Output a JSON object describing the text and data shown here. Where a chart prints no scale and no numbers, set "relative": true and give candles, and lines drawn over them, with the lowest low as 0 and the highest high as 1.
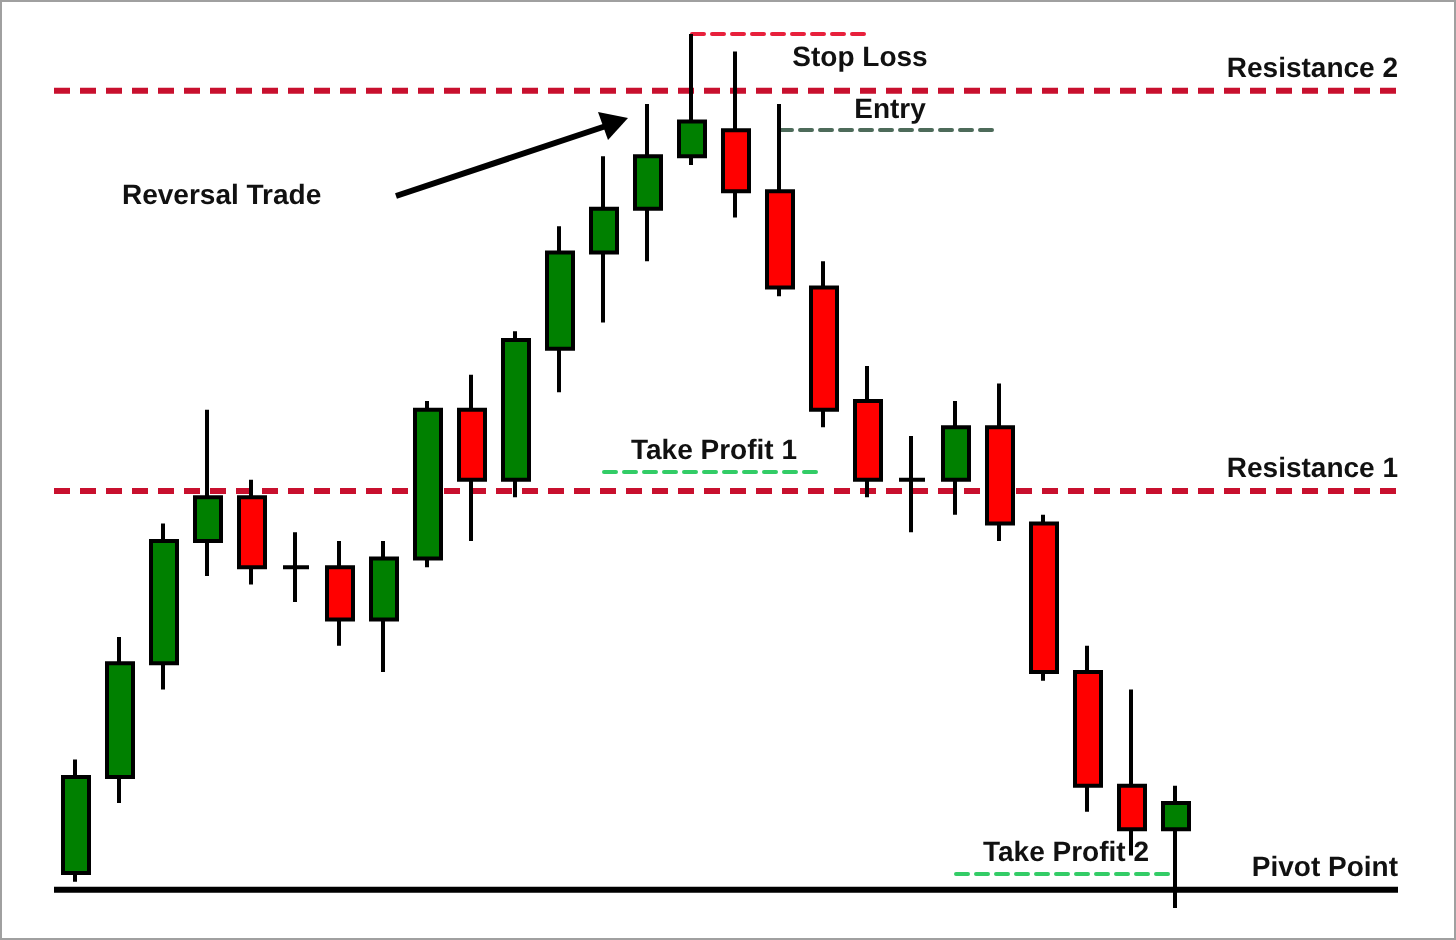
{
  "chart_data": {
    "type": "candlestick",
    "relative": true,
    "categories": [
      null,
      null,
      null,
      null,
      null,
      null,
      null,
      null,
      null,
      null,
      null,
      null,
      null,
      null,
      null,
      null,
      null,
      null,
      null,
      null,
      null,
      null,
      null,
      null,
      null,
      null
    ],
    "ohlc": [
      [
        0.04,
        0.17,
        0.03,
        0.15
      ],
      [
        0.15,
        0.31,
        0.12,
        0.28
      ],
      [
        0.28,
        0.44,
        0.25,
        0.42
      ],
      [
        0.42,
        0.57,
        0.38,
        0.47
      ],
      [
        0.47,
        0.49,
        0.37,
        0.39
      ],
      [
        0.39,
        0.43,
        0.35,
        0.39
      ],
      [
        0.39,
        0.42,
        0.3,
        0.33
      ],
      [
        0.33,
        0.42,
        0.27,
        0.4
      ],
      [
        0.4,
        0.58,
        0.39,
        0.57
      ],
      [
        0.57,
        0.61,
        0.42,
        0.49
      ],
      [
        0.49,
        0.66,
        0.47,
        0.65
      ],
      [
        0.64,
        0.78,
        0.59,
        0.75
      ],
      [
        0.75,
        0.86,
        0.67,
        0.8
      ],
      [
        0.8,
        0.92,
        0.74,
        0.86
      ],
      [
        0.86,
        1,
        0.85,
        0.9
      ],
      [
        0.89,
        0.98,
        0.79,
        0.82
      ],
      [
        0.82,
        0.92,
        0.7,
        0.71
      ],
      [
        0.71,
        0.74,
        0.55,
        0.57
      ],
      [
        0.58,
        0.62,
        0.47,
        0.49
      ],
      [
        0.49,
        0.54,
        0.43,
        0.49
      ],
      [
        0.49,
        0.58,
        0.45,
        0.55
      ],
      [
        0.55,
        0.6,
        0.42,
        0.44
      ],
      [
        0.44,
        0.45,
        0.26,
        0.27
      ],
      [
        0.27,
        0.3,
        0.11,
        0.14
      ],
      [
        0.14,
        0.25,
        0.06,
        0.09
      ],
      [
        0.09,
        0.14,
        0,
        0.12
      ]
    ],
    "colors": [
      "#008000",
      "#008000",
      "#008000",
      "#008000",
      "#ff0000",
      "#000000",
      "#ff0000",
      "#008000",
      "#008000",
      "#ff0000",
      "#008000",
      "#008000",
      "#008000",
      "#008000",
      "#008000",
      "#ff0000",
      "#ff0000",
      "#ff0000",
      "#ff0000",
      "#000000",
      "#008000",
      "#ff0000",
      "#ff0000",
      "#ff0000",
      "#ff0000",
      "#008000"
    ],
    "series": [
      {
        "type": "line",
        "name": "Stop Loss",
        "color": "#e8203c",
        "line_style": "dashed",
        "values": [
          null,
          null,
          null,
          null,
          null,
          null,
          null,
          null,
          null,
          null,
          null,
          null,
          null,
          null,
          1,
          1,
          1,
          1,
          1,
          null,
          null,
          null,
          null,
          null,
          null,
          null
        ]
      },
      {
        "type": "line",
        "name": "Entry",
        "color": "#4d6b5a",
        "line_style": "dashed",
        "values": [
          null,
          null,
          null,
          null,
          null,
          null,
          null,
          null,
          null,
          null,
          null,
          null,
          null,
          null,
          null,
          null,
          0.89,
          0.89,
          0.89,
          0.89,
          0.89,
          0.89,
          null,
          null,
          null,
          null
        ]
      },
      {
        "type": "line",
        "name": "Take Profit 1",
        "color": "#33cc66",
        "line_style": "dashed",
        "values": [
          null,
          null,
          null,
          null,
          null,
          null,
          null,
          null,
          null,
          null,
          null,
          null,
          0.5,
          0.5,
          0.5,
          0.5,
          0.5,
          0.5,
          null,
          null,
          null,
          null,
          null,
          null,
          null,
          null
        ]
      },
      {
        "type": "line",
        "name": "Take Profit 2",
        "color": "#33cc66",
        "line_style": "dashed",
        "values": [
          null,
          null,
          null,
          null,
          null,
          null,
          null,
          null,
          null,
          null,
          null,
          null,
          null,
          null,
          null,
          null,
          null,
          null,
          null,
          null,
          0.04,
          0.04,
          0.04,
          0.04,
          0.04,
          0.04
        ]
      }
    ],
    "ref_lines": [
      {
        "axis": "y",
        "value": 0.935,
        "label": "Resistance 2",
        "color": "#c8102e",
        "line_style": "dashed"
      },
      {
        "axis": "y",
        "value": 0.477,
        "label": "Resistance 1",
        "color": "#c8102e",
        "line_style": "dashed"
      },
      {
        "axis": "y",
        "value": 0.021,
        "label": "Pivot Point",
        "color": "#000000",
        "line_style": "solid"
      }
    ],
    "annotations": [
      "Reversal Trade"
    ]
  }
}
